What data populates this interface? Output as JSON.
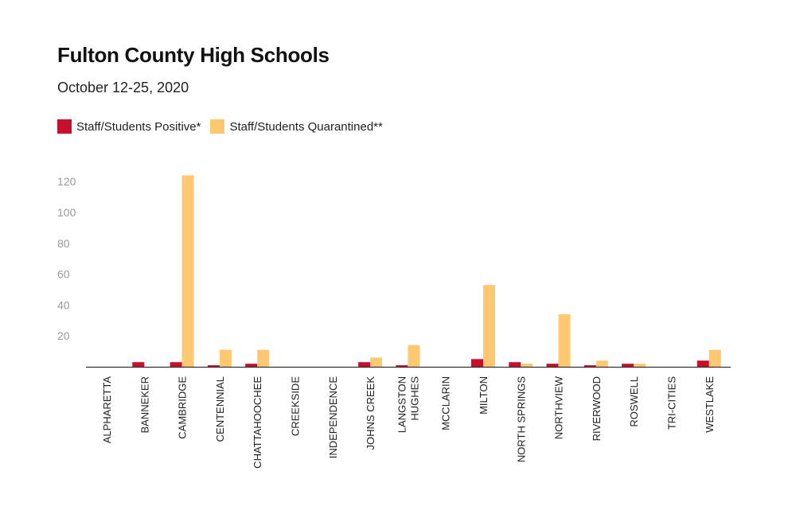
{
  "chart_data": {
    "type": "bar",
    "title": "Fulton County High Schools",
    "subtitle": "October 12-25, 2020",
    "categories": [
      "ALPHARETTA",
      "BANNEKER",
      "CAMBRIDGE",
      "CENTENNIAL",
      "CHATTAHOOCHEE",
      "CREEKSIDE",
      "INDEPENDENCE",
      "JOHNS CREEK",
      "LANGSTON HUGHES",
      "MCCLARIN",
      "MILTON",
      "NORTH SPRINGS",
      "NORTHVIEW",
      "RIVERWOOD",
      "ROSWELL",
      "TRI-CITIES",
      "WESTLAKE"
    ],
    "series": [
      {
        "name": "Staff/Students Positive*",
        "color": "#c8102e",
        "values": [
          0,
          3,
          3,
          1,
          2,
          0,
          0,
          3,
          1,
          0,
          5,
          3,
          2,
          1,
          2,
          0,
          4
        ]
      },
      {
        "name": "Staff/Students Quarantined**",
        "color": "#fec971",
        "values": [
          0,
          0,
          124,
          11,
          11,
          0,
          0,
          6,
          14,
          0,
          53,
          2,
          34,
          4,
          2,
          0,
          11
        ]
      }
    ],
    "ylim": [
      0,
      130
    ],
    "yticks": [
      20,
      40,
      60,
      80,
      100,
      120
    ],
    "xlabel": "",
    "ylabel": "",
    "legend": "top-left",
    "grid": false
  }
}
